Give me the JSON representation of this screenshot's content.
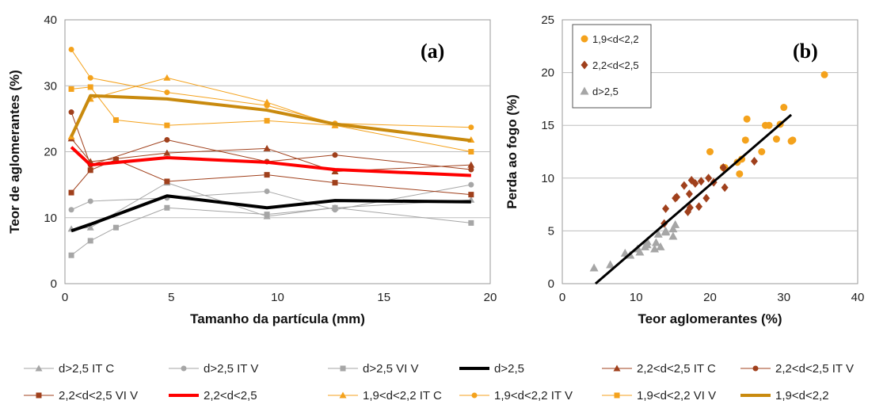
{
  "chart_data": [
    {
      "type": "line",
      "panel_label": "(a)",
      "xlabel": "Tamanho da partícula (mm)",
      "ylabel": "Teor de aglomerantes (%)",
      "xlim": [
        0,
        20
      ],
      "ylim": [
        0,
        40
      ],
      "xticks": [
        "0",
        "5",
        "10",
        "15",
        "20"
      ],
      "yticks": [
        "0",
        "10",
        "20",
        "30",
        "40"
      ],
      "grid": "horizontal",
      "x": [
        0.3,
        1.2,
        2.4,
        4.8,
        9.5,
        12.7,
        19.1
      ],
      "series": [
        {
          "name": "d>2,5 IT C",
          "color": "#a6a6a6",
          "marker": "triangle",
          "width": 1,
          "values": [
            8.3,
            8.5,
            null,
            15.3,
            10.2,
            11.5,
            12.7
          ]
        },
        {
          "name": "d>2,5 IT V",
          "color": "#a6a6a6",
          "marker": "circle",
          "width": 1,
          "values": [
            11.2,
            12.5,
            null,
            13.0,
            14.0,
            11.2,
            15.0
          ]
        },
        {
          "name": "d>2,5 VI V",
          "color": "#a6a6a6",
          "marker": "square",
          "width": 1,
          "values": [
            4.3,
            6.5,
            8.5,
            11.5,
            10.5,
            11.5,
            9.2
          ]
        },
        {
          "name": "d>2,5",
          "color": "#000000",
          "marker": "none",
          "width": 4,
          "values": [
            8.0,
            9.0,
            null,
            13.3,
            11.5,
            12.6,
            12.4
          ]
        },
        {
          "name": "2,2<d<2,5 IT C",
          "color": "#a0401c",
          "marker": "triangle",
          "width": 1,
          "values": [
            22.0,
            18.5,
            null,
            19.8,
            20.5,
            17.0,
            18.0
          ]
        },
        {
          "name": "2,2<d<2,5 IT V",
          "color": "#a0401c",
          "marker": "circle",
          "width": 1,
          "values": [
            26.0,
            18.0,
            null,
            21.8,
            18.5,
            19.5,
            17.3
          ]
        },
        {
          "name": "2,2<d<2,5 VI V",
          "color": "#a0401c",
          "marker": "square",
          "width": 1,
          "values": [
            13.8,
            17.2,
            18.8,
            15.5,
            16.5,
            15.3,
            13.5
          ]
        },
        {
          "name": "2,2<d<2,5",
          "color": "#ff0000",
          "marker": "none",
          "width": 4,
          "values": [
            20.7,
            18.0,
            null,
            19.1,
            18.4,
            17.3,
            16.4
          ]
        },
        {
          "name": "1,9<d<2,2 IT C",
          "color": "#f4a21c",
          "marker": "triangle",
          "width": 1,
          "values": [
            22.3,
            28.0,
            null,
            31.2,
            27.5,
            24.0,
            21.8
          ]
        },
        {
          "name": "1,9<d<2,2 IT V",
          "color": "#f4a21c",
          "marker": "circle",
          "width": 1,
          "values": [
            35.5,
            31.2,
            null,
            29.0,
            27.0,
            24.3,
            23.7
          ]
        },
        {
          "name": "1,9<d<2,2 VI V",
          "color": "#f4a21c",
          "marker": "square",
          "width": 1,
          "values": [
            29.5,
            29.8,
            24.8,
            24.0,
            24.7,
            24.0,
            20.0
          ]
        },
        {
          "name": "1,9<d<2,2",
          "color": "#c98a0e",
          "marker": "none",
          "width": 4,
          "values": [
            22.3,
            28.5,
            null,
            28.0,
            26.3,
            24.2,
            21.7
          ]
        }
      ]
    },
    {
      "type": "scatter",
      "panel_label": "(b)",
      "xlabel": "Teor aglomerantes (%)",
      "ylabel": "Perda ao fogo (%)",
      "xlim": [
        0,
        40
      ],
      "ylim": [
        0,
        25
      ],
      "xticks": [
        "0",
        "10",
        "20",
        "30",
        "40"
      ],
      "yticks": [
        "0",
        "5",
        "10",
        "15",
        "20",
        "25"
      ],
      "grid": "horizontal",
      "legend_position": "top-left",
      "series": [
        {
          "name": "1,9<d<2,2",
          "color": "#f4a21c",
          "marker": "circle",
          "points": [
            [
              35.5,
              19.8
            ],
            [
              30.0,
              16.7
            ],
            [
              29.0,
              13.7
            ],
            [
              31.2,
              13.6
            ],
            [
              25.0,
              15.6
            ],
            [
              24.0,
              10.4
            ],
            [
              27.5,
              15.0
            ],
            [
              20.0,
              12.5
            ],
            [
              22.0,
              11.0
            ],
            [
              24.3,
              11.8
            ],
            [
              23.7,
              11.5
            ],
            [
              28.0,
              15.0
            ],
            [
              24.8,
              13.6
            ],
            [
              29.5,
              15.1
            ],
            [
              27.0,
              12.5
            ],
            [
              21.8,
              11.0
            ],
            [
              31.0,
              13.5
            ]
          ]
        },
        {
          "name": "2,2<d<2,5",
          "color": "#a0401c",
          "marker": "diamond",
          "points": [
            [
              26.0,
              11.6
            ],
            [
              22.0,
              9.1
            ],
            [
              21.8,
              11.0
            ],
            [
              20.5,
              9.6
            ],
            [
              19.8,
              10.0
            ],
            [
              19.5,
              8.1
            ],
            [
              18.8,
              9.7
            ],
            [
              18.5,
              7.3
            ],
            [
              18.0,
              9.5
            ],
            [
              17.5,
              9.8
            ],
            [
              17.3,
              7.2
            ],
            [
              17.2,
              8.5
            ],
            [
              17.0,
              6.8
            ],
            [
              16.5,
              9.3
            ],
            [
              15.5,
              8.2
            ],
            [
              15.3,
              8.1
            ],
            [
              14.0,
              7.1
            ],
            [
              13.8,
              5.7
            ]
          ]
        },
        {
          "name": "d>2,5",
          "color": "#a6a6a6",
          "marker": "triangle",
          "points": [
            [
              4.3,
              1.5
            ],
            [
              6.5,
              1.8
            ],
            [
              8.5,
              2.9
            ],
            [
              9.2,
              2.7
            ],
            [
              10.2,
              3.3
            ],
            [
              10.5,
              3.0
            ],
            [
              11.2,
              3.5
            ],
            [
              11.5,
              4.0
            ],
            [
              12.5,
              3.3
            ],
            [
              12.7,
              3.9
            ],
            [
              13.0,
              4.7
            ],
            [
              13.3,
              3.5
            ],
            [
              14.0,
              4.9
            ],
            [
              15.0,
              5.2
            ],
            [
              15.3,
              5.6
            ],
            [
              15.0,
              4.5
            ],
            [
              11.5,
              3.7
            ],
            [
              14.0,
              5.0
            ]
          ]
        }
      ],
      "fit_line": {
        "color": "#000000",
        "points": [
          [
            4.5,
            0.0
          ],
          [
            31.0,
            16.0
          ]
        ]
      }
    }
  ]
}
